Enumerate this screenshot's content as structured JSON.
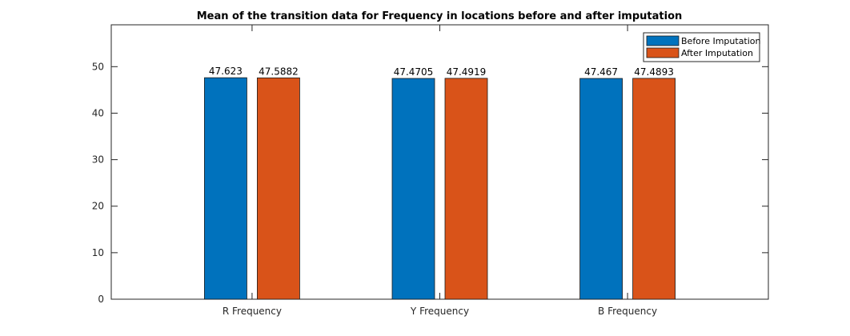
{
  "chart_data": {
    "type": "bar",
    "title": "Mean of the transition data for Frequency in locations before and after imputation",
    "xlabel": "",
    "ylabel": "",
    "categories": [
      "R Frequency",
      "Y Frequency",
      "B Frequency"
    ],
    "series": [
      {
        "name": "Before Imputation",
        "values": [
          47.623,
          47.4705,
          47.467
        ],
        "labels": [
          "47.623",
          "47.4705",
          "47.467"
        ],
        "color": "#0072BD"
      },
      {
        "name": "After Imputation",
        "values": [
          47.5882,
          47.4919,
          47.4893
        ],
        "labels": [
          "47.5882",
          "47.4919",
          "47.4893"
        ],
        "color": "#D95319"
      }
    ],
    "ylim": [
      0,
      59
    ],
    "yticks": [
      0,
      10,
      20,
      30,
      40,
      50
    ],
    "grid": false,
    "legend_position": "top-right"
  }
}
